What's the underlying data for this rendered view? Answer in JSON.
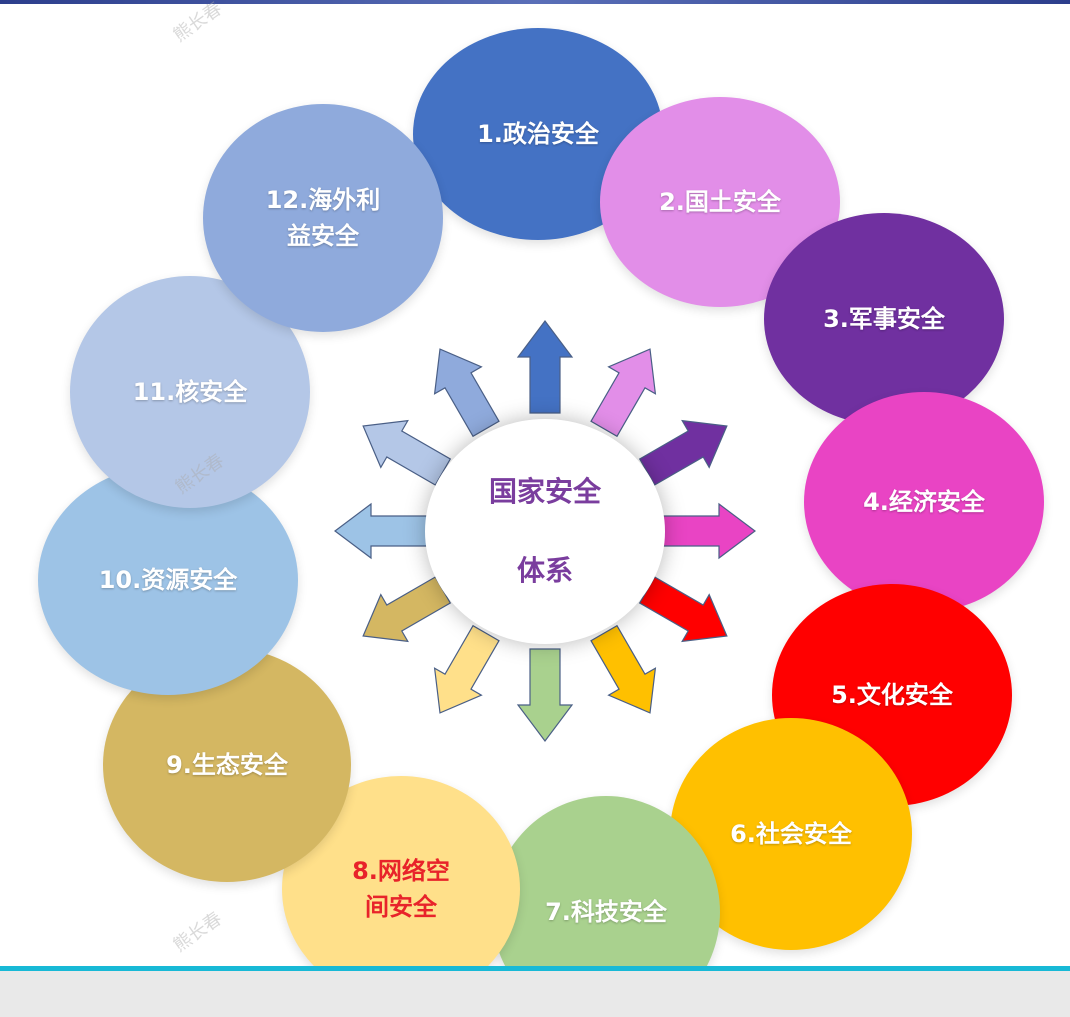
{
  "center": {
    "line1": "国家安全",
    "line2": "体系"
  },
  "petals": [
    {
      "label": "1.政治安全",
      "color": "#4472c4"
    },
    {
      "label": "2.国土安全",
      "color": "#e28ee8"
    },
    {
      "label": "3.军事安全",
      "color": "#7030a0"
    },
    {
      "label": "4.经济安全",
      "color": "#e944c4"
    },
    {
      "label": "5.文化安全",
      "color": "#ff0000"
    },
    {
      "label": "6.社会安全",
      "color": "#ffc000"
    },
    {
      "label": "7.科技安全",
      "color": "#a9d18e"
    },
    {
      "label": "8.网络空\n间安全",
      "color": "#ffe08a",
      "label_color": "#e8232a"
    },
    {
      "label": "9.生态安全",
      "color": "#d4b762"
    },
    {
      "label": "10.资源安全",
      "color": "#9dc3e6"
    },
    {
      "label": "11.核安全",
      "color": "#b4c7e7"
    },
    {
      "label": "12.海外利\n益安全",
      "color": "#8faadc"
    }
  ],
  "watermark": "熊长春"
}
